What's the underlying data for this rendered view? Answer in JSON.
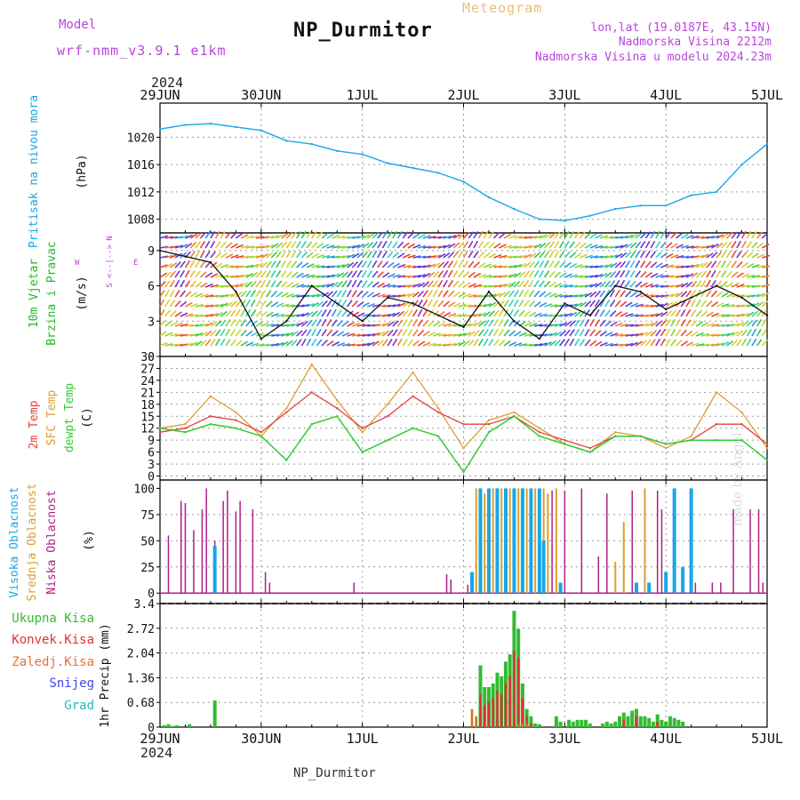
{
  "header": {
    "model_label": "Model",
    "model_value": "wrf-nmm_v3.9.1 e1km",
    "title": "NP_Durmitor",
    "subtitle": "Meteogram",
    "info_line1": "lon,lat (19.0187E, 43.15N)",
    "info_line2": "Nadmorska Visina 2212m",
    "info_line3": "Nadmorska Visina u modelu 2024.23m",
    "year": "2024",
    "footer_station": "NP_Durmitor",
    "watermark": "made by Angel"
  },
  "colors": {
    "pressure": "#1aa6e8",
    "temp2m": "#e84040",
    "sfc_temp": "#d9a030",
    "dewpt": "#33cc33",
    "high_cloud": "#1aa6e8",
    "mid_cloud": "#d9a030",
    "low_cloud": "#b0208a",
    "precip_total": "#33bb33",
    "precip_conv": "#dd3333",
    "precip_grid": "#d07020",
    "magenta_label": "#bb44dd",
    "wind_label": "#22bb22"
  },
  "chart_data": [
    {
      "type": "line",
      "panel": "pressure",
      "ylabel_left": "Pritisak na nivou mora",
      "ylabel_unit": "(hPa)",
      "ylim": [
        1006,
        1025
      ],
      "yticks": [
        1008,
        1012,
        1016,
        1020
      ],
      "xticks": [
        "29JUN",
        "30JUN",
        "1JUL",
        "2JUL",
        "3JUL",
        "4JUL",
        "5JUL"
      ],
      "grid": true,
      "x_hours": [
        0,
        6,
        12,
        18,
        24,
        30,
        36,
        42,
        48,
        54,
        60,
        66,
        72,
        78,
        84,
        90,
        96,
        102,
        108,
        114,
        120,
        126,
        132,
        138,
        144
      ],
      "series": [
        {
          "values": [
            1021.2,
            1021.8,
            1022.0,
            1021.5,
            1021.0,
            1019.5,
            1019.0,
            1018.0,
            1017.5,
            1016.2,
            1015.5,
            1014.8,
            1013.5,
            1011.2,
            1009.5,
            1008.0,
            1007.8,
            1008.5,
            1009.5,
            1010.0,
            1010.0,
            1011.5,
            1012.0,
            1016.0,
            1019.0
          ]
        }
      ]
    },
    {
      "type": "line",
      "panel": "wind",
      "ylabel_left_1": "10m Vjetar",
      "ylabel_left_2": "Brzina i Pravac",
      "ylabel_unit": "(m/s)",
      "compass_n": "N",
      "compass_s": "S",
      "compass_w": "W",
      "compass_e": "E",
      "ylim": [
        0,
        10.5
      ],
      "yticks": [
        0,
        3,
        6,
        9
      ],
      "grid": true,
      "x_hours": [
        0,
        6,
        12,
        18,
        24,
        30,
        36,
        42,
        48,
        54,
        60,
        66,
        72,
        78,
        84,
        90,
        96,
        102,
        108,
        114,
        120,
        126,
        132,
        138,
        144
      ],
      "series": [
        {
          "values": [
            9.0,
            8.5,
            8.0,
            5.5,
            1.5,
            3.0,
            6.0,
            4.5,
            3.0,
            5.0,
            4.5,
            3.5,
            2.5,
            5.5,
            3.0,
            1.5,
            4.5,
            3.5,
            6.0,
            5.5,
            4.0,
            5.0,
            6.0,
            5.0,
            3.5
          ]
        }
      ]
    },
    {
      "type": "line",
      "panel": "temperature",
      "ylabel_left_1": "2m Temp",
      "ylabel_left_2": "SFC Temp",
      "ylabel_left_3": "dewpt Temp",
      "ylabel_unit": "(C)",
      "ylim": [
        -1,
        30
      ],
      "yticks": [
        0,
        3,
        6,
        9,
        12,
        15,
        18,
        21,
        24,
        27,
        30
      ],
      "grid": true,
      "x_hours": [
        0,
        6,
        12,
        18,
        24,
        30,
        36,
        42,
        48,
        54,
        60,
        66,
        72,
        78,
        84,
        90,
        96,
        102,
        108,
        114,
        120,
        126,
        132,
        138,
        144
      ],
      "series": [
        {
          "name": "2m Temp",
          "values": [
            11,
            12,
            15,
            14,
            11,
            16,
            21,
            17,
            12,
            15,
            20,
            16,
            13,
            13,
            15,
            11,
            9,
            7,
            10,
            10,
            8,
            9,
            13,
            13,
            8
          ]
        },
        {
          "name": "SFC Temp",
          "values": [
            12,
            13,
            20,
            16,
            10,
            17,
            28,
            19,
            11,
            18,
            26,
            17,
            7,
            14,
            16,
            12,
            8,
            6,
            11,
            10,
            7,
            10,
            21,
            16,
            7
          ]
        },
        {
          "name": "dewpt Temp",
          "values": [
            12,
            11,
            13,
            12,
            10,
            4,
            13,
            15,
            6,
            9,
            12,
            10,
            1,
            11,
            15,
            10,
            8,
            6,
            10,
            10,
            8,
            9,
            9,
            9,
            4
          ]
        }
      ]
    },
    {
      "type": "bar",
      "panel": "clouds",
      "ylabel_left_1": "Visoka Oblacnost",
      "ylabel_left_2": "Srednja Oblacnost",
      "ylabel_left_3": "Niska Oblacnost",
      "ylabel_unit": "(%)",
      "ylim": [
        0,
        100
      ],
      "yticks": [
        0,
        25,
        50,
        75,
        100
      ],
      "grid": true,
      "series": [
        {
          "name": "Niska Oblacnost",
          "x_hours": [
            2,
            5,
            6,
            8,
            10,
            11,
            13,
            15,
            16,
            18,
            19,
            22,
            25,
            26,
            46,
            68,
            69,
            73,
            93,
            96,
            100,
            104,
            106,
            110,
            112,
            118,
            119,
            127,
            131,
            133,
            136,
            140,
            142,
            143
          ],
          "values": [
            55,
            88,
            86,
            60,
            80,
            100,
            50,
            88,
            98,
            78,
            88,
            80,
            20,
            10,
            10,
            18,
            13,
            8,
            98,
            98,
            100,
            35,
            95,
            60,
            98,
            98,
            80,
            10,
            10,
            10,
            80,
            80,
            80,
            10
          ]
        },
        {
          "name": "Srednja Oblacnost",
          "x_hours": [
            75,
            77,
            79,
            81,
            83,
            85,
            87,
            89,
            91,
            92,
            94,
            108,
            110,
            115
          ],
          "values": [
            100,
            95,
            100,
            100,
            100,
            100,
            100,
            100,
            100,
            95,
            100,
            30,
            68,
            100
          ]
        },
        {
          "name": "Visoka Oblacnost",
          "x_hours": [
            13,
            74,
            76,
            78,
            80,
            82,
            84,
            86,
            88,
            90,
            91,
            95,
            113,
            116,
            120,
            122,
            124,
            126
          ],
          "values": [
            45,
            20,
            100,
            100,
            100,
            100,
            100,
            100,
            100,
            100,
            50,
            10,
            10,
            10,
            20,
            100,
            25,
            100
          ]
        }
      ]
    },
    {
      "type": "bar",
      "panel": "precip",
      "legend": [
        "Ukupna Kisa",
        "Konvek.Kisa",
        "Zaledj.Kisa",
        "Snijeg",
        "Grad"
      ],
      "ylabel_unit": "1hr Precip (mm)",
      "ylim": [
        0,
        3.4
      ],
      "yticks": [
        0,
        0.68,
        1.36,
        2.04,
        2.72,
        3.4
      ],
      "xticks_bottom": [
        "29JUN",
        "30JUN",
        "1JUL",
        "2JUL",
        "3JUL",
        "4JUL",
        "5JUL"
      ],
      "grid": true,
      "series": [
        {
          "name": "Ukupna Kisa",
          "x_hours": [
            1,
            2,
            3,
            4,
            7,
            13,
            76,
            77,
            78,
            79,
            80,
            81,
            82,
            83,
            84,
            85,
            86,
            87,
            88,
            89,
            90,
            94,
            95,
            97,
            98,
            99,
            100,
            101,
            102,
            105,
            106,
            107,
            108,
            109,
            110,
            111,
            112,
            113,
            114,
            115,
            116,
            117,
            118,
            119,
            120,
            121,
            122,
            123,
            124
          ],
          "values": [
            0.05,
            0.08,
            0.03,
            0.05,
            0.08,
            0.73,
            1.7,
            1.1,
            1.1,
            1.2,
            1.5,
            1.4,
            1.8,
            2.0,
            3.2,
            2.7,
            1.2,
            0.5,
            0.3,
            0.1,
            0.08,
            0.3,
            0.15,
            0.2,
            0.15,
            0.2,
            0.2,
            0.2,
            0.1,
            0.1,
            0.15,
            0.1,
            0.15,
            0.3,
            0.4,
            0.3,
            0.45,
            0.5,
            0.3,
            0.3,
            0.25,
            0.15,
            0.35,
            0.2,
            0.15,
            0.3,
            0.25,
            0.2,
            0.15
          ]
        },
        {
          "name": "Konvek.Kisa",
          "x_hours": [
            75,
            76,
            77,
            78,
            79,
            80,
            81,
            82,
            83,
            84,
            85,
            86,
            87,
            88,
            110,
            113,
            118
          ],
          "values": [
            0.2,
            0.9,
            0.6,
            0.7,
            0.8,
            1.0,
            0.9,
            1.2,
            1.4,
            2.1,
            1.9,
            0.8,
            0.3,
            0.1,
            0.2,
            0.3,
            0.15
          ]
        },
        {
          "name": "Zaledj.Kisa",
          "x_hours": [
            74,
            75,
            85,
            86,
            87
          ],
          "values": [
            0.5,
            0.3,
            0.1,
            0.1,
            0.1
          ]
        }
      ]
    }
  ]
}
